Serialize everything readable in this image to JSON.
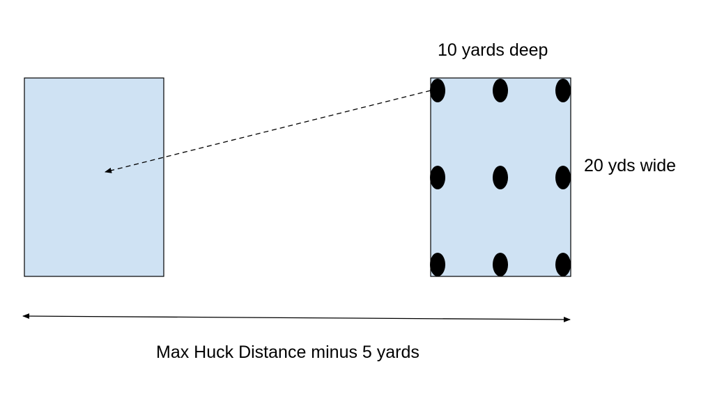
{
  "colors": {
    "zone_fill": "#cfe2f3",
    "outline": "#000000",
    "player": "#000000",
    "background": "#ffffff"
  },
  "labels": {
    "depth": "10 yards deep",
    "width": "20 yds wide",
    "distance": "Max Huck Distance minus 5 yards"
  },
  "diagram": {
    "target_zone": {
      "shape": "rectangle"
    },
    "player_zone": {
      "shape": "rectangle",
      "players": {
        "rows": 3,
        "columns": 3,
        "count": 9
      }
    },
    "huck_arrow": {
      "style": "dashed",
      "direction": "player-zone-to-target-zone"
    },
    "distance_arrow": {
      "style": "solid",
      "heads": "both"
    }
  }
}
